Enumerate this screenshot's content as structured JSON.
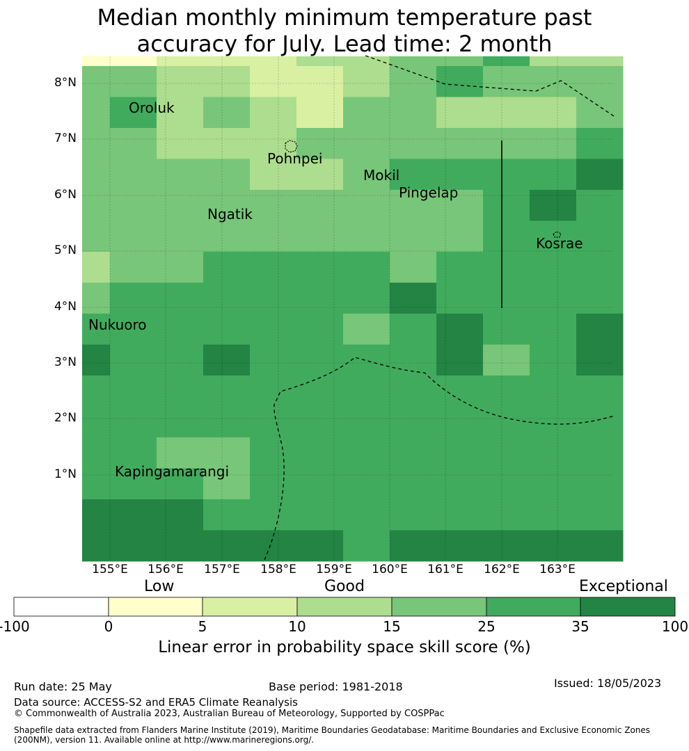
{
  "title": {
    "line1": "Median monthly minimum temperature past",
    "line2": "accuracy for July. Lead time: 2 month"
  },
  "axes": {
    "lat_labels": [
      "8°N",
      "7°N",
      "6°N",
      "5°N",
      "4°N",
      "3°N",
      "2°N",
      "1°N"
    ],
    "lon_labels": [
      "155°E",
      "156°E",
      "157°E",
      "158°E",
      "159°E",
      "160°E",
      "161°E",
      "162°E",
      "163°E"
    ]
  },
  "places": [
    {
      "name": "Oroluk"
    },
    {
      "name": "Pohnpei"
    },
    {
      "name": "Mokil"
    },
    {
      "name": "Pingelap"
    },
    {
      "name": "Ngatik"
    },
    {
      "name": "Kosrae"
    },
    {
      "name": "Nukuoro"
    },
    {
      "name": "Kapingamarangi"
    }
  ],
  "colorbar": {
    "category_labels": [
      "Low",
      "Good",
      "Exceptional"
    ],
    "ticks": [
      "-100",
      "0",
      "5",
      "10",
      "15",
      "25",
      "35",
      "100"
    ],
    "colors": [
      "#ffffff",
      "#ffffcc",
      "#d9f0a3",
      "#addd8e",
      "#78c679",
      "#41ab5d",
      "#238443"
    ],
    "title": "Linear error in probability space skill score (%)"
  },
  "footer": {
    "run_date": "Run date: 25 May",
    "base_period": "Base period: 1981-2018",
    "issued": "Issued: 18/05/2023",
    "data_source": "Data source: ACCESS-S2 and ERA5 Climate Reanalysis",
    "copyright": "© Commonwealth of Australia 2023, Australian Bureau of Meteorology, Supported by COSPPac",
    "shapefile_line1": "Shapefile data extracted from Flanders Marine Institute (2019), Maritime Boundaries Geodatabase: Maritime Boundaries and Exclusive Economic Zones",
    "shapefile_line2": "(200NM), version 11. Available online at http://www.marineregions.org/."
  },
  "grid": {
    "levels": [
      "0011122334223",
      "3322112343332",
      "3423213322233",
      "3322233333344",
      "3333223444454",
      "3333333334543",
      "3333333334444",
      "2334444344444",
      "3444444544443",
      "4444443454455",
      "5445444453455",
      "4444444444445",
      "4444444444445",
      "4433444444445",
      "4443444444444",
      "5554444444445",
      "5555554555555",
      "5555555555555"
    ]
  }
}
